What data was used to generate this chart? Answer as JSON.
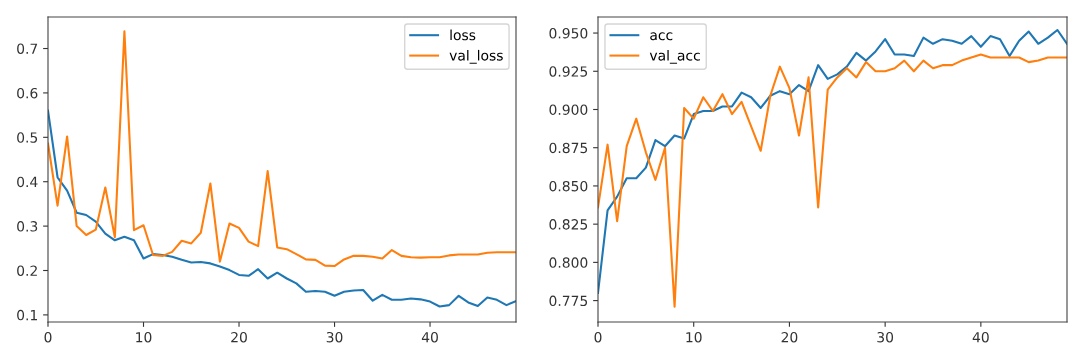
{
  "chart_data": [
    {
      "type": "line",
      "x": [
        0,
        1,
        2,
        3,
        4,
        5,
        6,
        7,
        8,
        9,
        10,
        11,
        12,
        13,
        14,
        15,
        16,
        17,
        18,
        19,
        20,
        21,
        22,
        23,
        24,
        25,
        26,
        27,
        28,
        29,
        30,
        31,
        32,
        33,
        34,
        35,
        36,
        37,
        38,
        39,
        40,
        41,
        42,
        43,
        44,
        45,
        46,
        47,
        48,
        49
      ],
      "series": [
        {
          "name": "loss",
          "color": "#1f77b4",
          "values": [
            0.56,
            0.41,
            0.38,
            0.33,
            0.325,
            0.31,
            0.283,
            0.268,
            0.276,
            0.268,
            0.227,
            0.237,
            0.235,
            0.231,
            0.224,
            0.218,
            0.219,
            0.216,
            0.209,
            0.201,
            0.19,
            0.188,
            0.203,
            0.182,
            0.195,
            0.182,
            0.171,
            0.152,
            0.154,
            0.152,
            0.143,
            0.152,
            0.155,
            0.156,
            0.132,
            0.145,
            0.134,
            0.134,
            0.137,
            0.135,
            0.13,
            0.119,
            0.122,
            0.143,
            0.128,
            0.12,
            0.139,
            0.134,
            0.122,
            0.131
          ]
        },
        {
          "name": "val_loss",
          "color": "#ff7f0e",
          "values": [
            0.486,
            0.346,
            0.502,
            0.3,
            0.28,
            0.292,
            0.387,
            0.275,
            0.739,
            0.291,
            0.302,
            0.235,
            0.233,
            0.242,
            0.267,
            0.261,
            0.285,
            0.396,
            0.22,
            0.306,
            0.296,
            0.265,
            0.255,
            0.424,
            0.252,
            0.248,
            0.237,
            0.225,
            0.224,
            0.211,
            0.21,
            0.225,
            0.233,
            0.233,
            0.231,
            0.227,
            0.246,
            0.233,
            0.23,
            0.229,
            0.23,
            0.23,
            0.234,
            0.236,
            0.236,
            0.236,
            0.24,
            0.241,
            0.241,
            0.241
          ]
        }
      ],
      "xlim": [
        0,
        49
      ],
      "xticks": [
        0,
        10,
        20,
        30,
        40
      ],
      "ylim": [
        0.084,
        0.771
      ],
      "yticks": [
        0.1,
        0.2,
        0.3,
        0.4,
        0.5,
        0.6,
        0.7
      ],
      "legend": "top right",
      "grid": false
    },
    {
      "type": "line",
      "x": [
        0,
        1,
        2,
        3,
        4,
        5,
        6,
        7,
        8,
        9,
        10,
        11,
        12,
        13,
        14,
        15,
        16,
        17,
        18,
        19,
        20,
        21,
        22,
        23,
        24,
        25,
        26,
        27,
        28,
        29,
        30,
        31,
        32,
        33,
        34,
        35,
        36,
        37,
        38,
        39,
        40,
        41,
        42,
        43,
        44,
        45,
        46,
        47,
        48,
        49
      ],
      "series": [
        {
          "name": "acc",
          "color": "#1f77b4",
          "values": [
            0.78,
            0.834,
            0.843,
            0.855,
            0.855,
            0.862,
            0.88,
            0.876,
            0.883,
            0.881,
            0.897,
            0.899,
            0.899,
            0.902,
            0.902,
            0.911,
            0.908,
            0.901,
            0.909,
            0.912,
            0.91,
            0.916,
            0.912,
            0.929,
            0.92,
            0.923,
            0.928,
            0.937,
            0.932,
            0.938,
            0.946,
            0.936,
            0.936,
            0.935,
            0.947,
            0.943,
            0.946,
            0.945,
            0.943,
            0.948,
            0.941,
            0.948,
            0.946,
            0.935,
            0.945,
            0.951,
            0.943,
            0.947,
            0.952,
            0.943
          ]
        },
        {
          "name": "val_acc",
          "color": "#ff7f0e",
          "values": [
            0.836,
            0.877,
            0.827,
            0.876,
            0.894,
            0.872,
            0.854,
            0.875,
            0.771,
            0.901,
            0.894,
            0.908,
            0.899,
            0.91,
            0.897,
            0.905,
            0.889,
            0.873,
            0.909,
            0.928,
            0.914,
            0.883,
            0.921,
            0.836,
            0.913,
            0.921,
            0.927,
            0.921,
            0.931,
            0.925,
            0.925,
            0.927,
            0.932,
            0.925,
            0.932,
            0.927,
            0.929,
            0.929,
            0.932,
            0.934,
            0.936,
            0.934,
            0.934,
            0.934,
            0.934,
            0.931,
            0.932,
            0.934,
            0.934,
            0.934
          ]
        }
      ],
      "xlim": [
        0,
        49
      ],
      "xticks": [
        0,
        10,
        20,
        30,
        40
      ],
      "ylim": [
        0.761,
        0.9605
      ],
      "yticks": [
        0.775,
        {
          "value": 0.8,
          "label": "0.800"
        },
        0.825,
        {
          "value": 0.85,
          "label": "0.850"
        },
        0.875,
        {
          "value": 0.9,
          "label": "0.900"
        },
        0.925,
        {
          "value": 0.95,
          "label": "0.950"
        }
      ],
      "legend": "top left",
      "grid": false
    }
  ]
}
